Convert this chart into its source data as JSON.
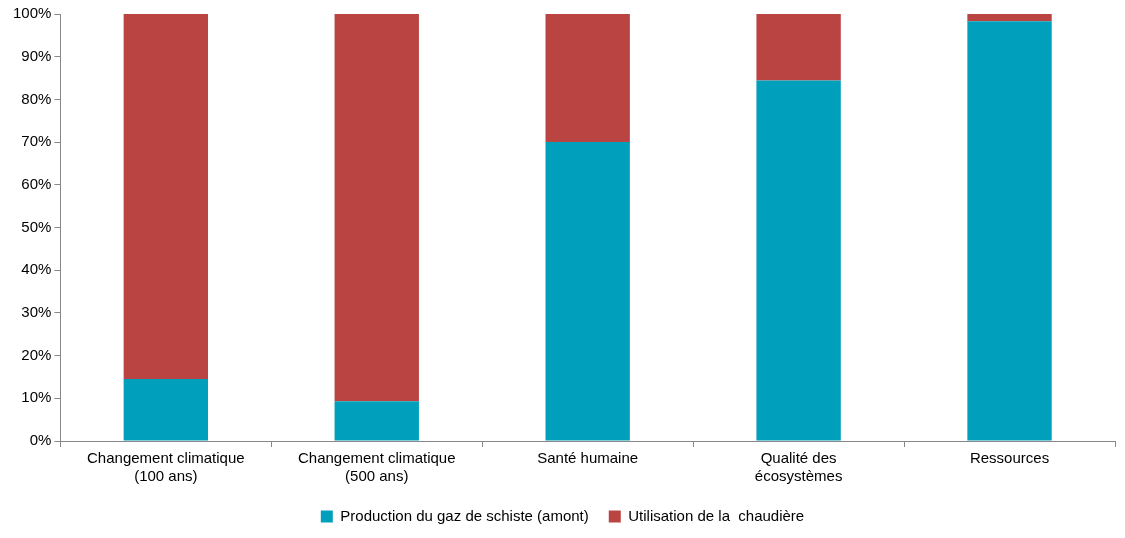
{
  "chart_data": {
    "type": "bar",
    "stacked": true,
    "categories": [
      "Changement climatique (100 ans)",
      "Changement climatique (500 ans)",
      "Santé humaine",
      "Qualité des écosystèmes",
      "Ressources"
    ],
    "series": [
      {
        "name": "Production du gaz de schiste (amont)",
        "color": "#00a0bd",
        "values": [
          14.5,
          9.3,
          70,
          84.4,
          98.3
        ]
      },
      {
        "name": "Utilisation de la  chaudière",
        "color": "#b94441",
        "values": [
          85.5,
          90.7,
          30,
          15.6,
          1.7
        ]
      }
    ],
    "ylim": [
      0,
      100
    ],
    "yticks": [
      {
        "value": 0,
        "label": "0%"
      },
      {
        "value": 10,
        "label": "10%"
      },
      {
        "value": 20,
        "label": "20%"
      },
      {
        "value": 30,
        "label": "30%"
      },
      {
        "value": 40,
        "label": "40%"
      },
      {
        "value": 50,
        "label": "50%"
      },
      {
        "value": 60,
        "label": "60%"
      },
      {
        "value": 70,
        "label": "70%"
      },
      {
        "value": 80,
        "label": "80%"
      },
      {
        "value": 90,
        "label": "90%"
      },
      {
        "value": 100,
        "label": "100%"
      }
    ],
    "grid": false,
    "legend": "bottom"
  }
}
